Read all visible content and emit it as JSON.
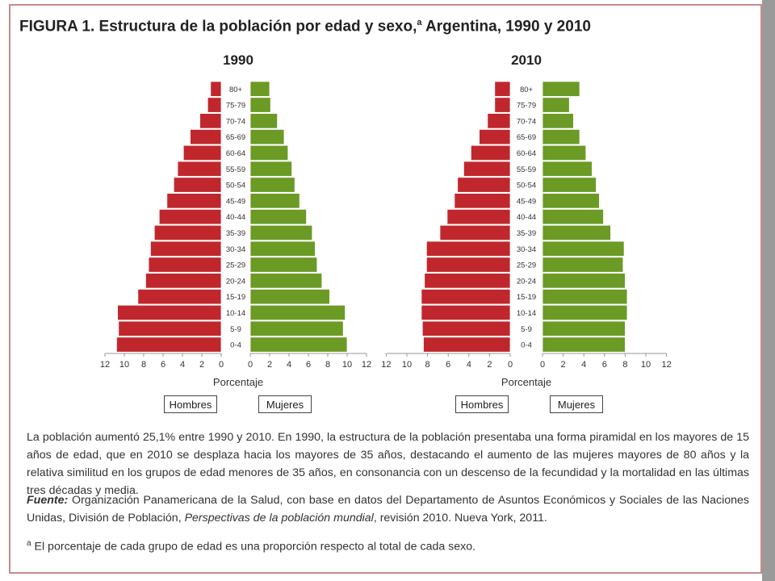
{
  "figure": {
    "title_prefix": "FIGURA 1. Estructura de la población por edad y sexo,",
    "title_sup": "a",
    "title_suffix": " Argentina, 1990 y 2010"
  },
  "colors": {
    "hombres": "#c0272d",
    "mujeres": "#6b9a25",
    "frame": "#c98a8a"
  },
  "chart_data": [
    {
      "type": "bar",
      "title": "1990",
      "orientation": "horizontal-population-pyramid",
      "categories": [
        "0-4",
        "5-9",
        "10-14",
        "15-19",
        "20-24",
        "25-29",
        "30-34",
        "35-39",
        "40-44",
        "45-49",
        "50-54",
        "55-59",
        "60-64",
        "65-69",
        "70-74",
        "75-79",
        "80+"
      ],
      "series": [
        {
          "name": "Hombres",
          "values": [
            10.8,
            10.6,
            10.7,
            8.6,
            7.8,
            7.5,
            7.3,
            6.9,
            6.4,
            5.6,
            4.9,
            4.5,
            3.9,
            3.2,
            2.2,
            1.4,
            1.1
          ]
        },
        {
          "name": "Mujeres",
          "values": [
            10.0,
            9.6,
            9.8,
            8.2,
            7.4,
            6.9,
            6.7,
            6.4,
            5.8,
            5.1,
            4.6,
            4.3,
            3.9,
            3.5,
            2.8,
            2.1,
            2.0
          ]
        }
      ],
      "xlabel": "Porcentaje",
      "xticks_left": [
        "12",
        "10",
        "8",
        "6",
        "4",
        "2",
        "0"
      ],
      "xticks_right": [
        "0",
        "2",
        "4",
        "6",
        "8",
        "10",
        "12"
      ],
      "xlim": [
        0,
        12
      ]
    },
    {
      "type": "bar",
      "title": "2010",
      "orientation": "horizontal-population-pyramid",
      "categories": [
        "0-4",
        "5-9",
        "10-14",
        "15-19",
        "20-24",
        "25-29",
        "30-34",
        "35-39",
        "40-44",
        "45-49",
        "50-54",
        "55-59",
        "60-64",
        "65-69",
        "70-74",
        "75-79",
        "80+"
      ],
      "series": [
        {
          "name": "Hombres",
          "values": [
            8.4,
            8.5,
            8.6,
            8.6,
            8.3,
            8.1,
            8.1,
            6.8,
            6.1,
            5.4,
            5.1,
            4.5,
            3.8,
            3.0,
            2.2,
            1.5,
            1.5
          ]
        },
        {
          "name": "Mujeres",
          "values": [
            8.0,
            8.0,
            8.2,
            8.2,
            8.0,
            7.8,
            7.9,
            6.6,
            5.9,
            5.5,
            5.2,
            4.8,
            4.2,
            3.6,
            3.0,
            2.6,
            3.6
          ]
        }
      ],
      "xlabel": "Porcentaje",
      "xticks_left": [
        "12",
        "10",
        "8",
        "6",
        "4",
        "2",
        "0"
      ],
      "xticks_right": [
        "0",
        "2",
        "4",
        "6",
        "8",
        "10",
        "12"
      ],
      "xlim": [
        0,
        12
      ]
    }
  ],
  "legend": {
    "hombres": "Hombres",
    "mujeres": "Mujeres"
  },
  "body_text": {
    "paragraph": "La población aumentó 25,1% entre 1990 y 2010. En 1990, la estructura de la población presentaba una forma piramidal en los mayores de 15 años de edad, que en 2010 se desplaza hacia los mayores de 35 años, destacando el aumento de las mujeres mayores de 80 años y la relativa similitud en los grupos de edad menores de 35 años, en consonancia con un descenso de la fecundidad y la mortalidad en las últimas tres décadas y media.",
    "source_label": "Fuente:",
    "source_part1": " Organización Panamericana de la Salud, con base en datos del Departamento de Asuntos Económicos y Sociales de las Naciones Unidas, División de Población, ",
    "source_italic": "Perspectivas de la población mundial",
    "source_part2": ", revisión 2010. Nueva York, 2011.",
    "footnote_sup": "a",
    "footnote_text": " El porcentaje de cada grupo de edad es una proporción respecto al total de cada sexo."
  }
}
